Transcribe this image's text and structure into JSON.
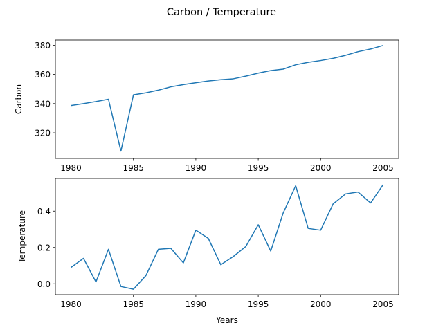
{
  "figure": {
    "title": "Carbon / Temperature"
  },
  "chart_data": [
    {
      "type": "line",
      "title": "",
      "xlabel": "",
      "ylabel": "Carbon",
      "xlim": [
        1978.75,
        2006.25
      ],
      "ylim": [
        302.5,
        383.5
      ],
      "xticks": [
        1980,
        1985,
        1990,
        1995,
        2000,
        2005
      ],
      "yticks": [
        320,
        340,
        360,
        380
      ],
      "grid": false,
      "color": "#1f77b4",
      "series": [
        {
          "x": [
            1980,
            1981,
            1982,
            1983,
            1984,
            1985,
            1986,
            1987,
            1988,
            1989,
            1990,
            1991,
            1992,
            1993,
            1994,
            1995,
            1996,
            1997,
            1998,
            1999,
            2000,
            2001,
            2002,
            2003,
            2004,
            2005
          ],
          "values": [
            338.7,
            340.0,
            341.4,
            343.0,
            307.5,
            346.0,
            347.4,
            349.2,
            351.5,
            353.0,
            354.3,
            355.5,
            356.4,
            357.0,
            358.8,
            360.9,
            362.6,
            363.6,
            366.6,
            368.3,
            369.5,
            371.0,
            373.1,
            375.6,
            377.4,
            379.8
          ]
        }
      ]
    },
    {
      "type": "line",
      "title": "",
      "xlabel": "Years",
      "ylabel": "Temperature",
      "xlim": [
        1978.75,
        2006.25
      ],
      "ylim": [
        -0.06,
        0.58
      ],
      "xticks": [
        1980,
        1985,
        1990,
        1995,
        2000,
        2005
      ],
      "yticks": [
        0.0,
        0.2,
        0.4
      ],
      "ytick_labels": [
        "0.0",
        "0.2",
        "0.4"
      ],
      "grid": false,
      "color": "#1f77b4",
      "series": [
        {
          "x": [
            1980,
            1981,
            1982,
            1983,
            1984,
            1985,
            1986,
            1987,
            1988,
            1989,
            1990,
            1991,
            1992,
            1993,
            1994,
            1995,
            1996,
            1997,
            1998,
            1999,
            2000,
            2001,
            2002,
            2003,
            2004,
            2005
          ],
          "values": [
            0.09,
            0.14,
            0.01,
            0.19,
            -0.015,
            -0.03,
            0.045,
            0.19,
            0.195,
            0.115,
            0.295,
            0.25,
            0.105,
            0.15,
            0.205,
            0.325,
            0.18,
            0.39,
            0.54,
            0.305,
            0.295,
            0.44,
            0.495,
            0.505,
            0.445,
            0.545
          ]
        }
      ]
    }
  ]
}
